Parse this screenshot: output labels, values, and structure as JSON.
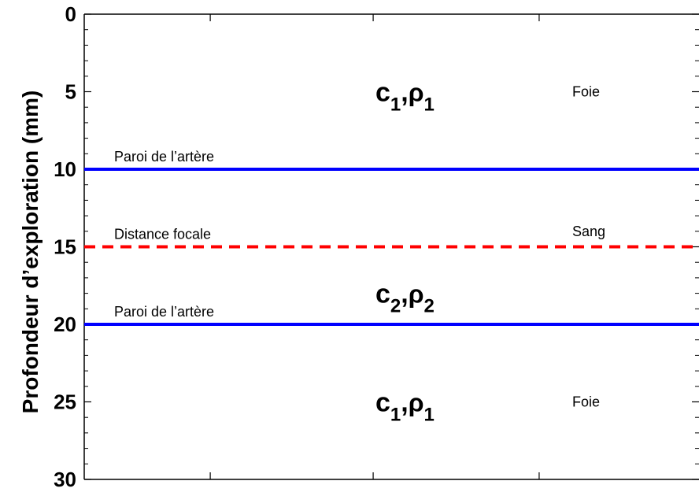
{
  "chart_data": {
    "type": "line",
    "ylabel": "Profondeur d’exploration (mm)",
    "ylim": [
      0,
      30
    ],
    "y_reversed": true,
    "yticks": [
      0,
      5,
      10,
      15,
      20,
      25,
      30
    ],
    "ytick_labels": [
      "0",
      "5",
      "10",
      "15",
      "20",
      "25",
      "30"
    ],
    "minor_ytick_step": 1,
    "xticks_count": 4,
    "grid": false,
    "lines": [
      {
        "name": "Paroi de l’artère",
        "depth": 10,
        "color": "#0000ff",
        "style": "solid"
      },
      {
        "name": "Distance focale",
        "depth": 15,
        "color": "#ff0000",
        "style": "dashed"
      },
      {
        "name": "Paroi de l’artère",
        "depth": 20,
        "color": "#0000ff",
        "style": "solid"
      }
    ],
    "layer_labels": [
      {
        "symbol": "c",
        "sub": "1",
        "greek": "ρ",
        "greek_sub": "1",
        "depth": 5
      },
      {
        "symbol": "c",
        "sub": "2",
        "greek": "ρ",
        "greek_sub": "2",
        "depth": 18
      },
      {
        "symbol": "c",
        "sub": "1",
        "greek": "ρ",
        "greek_sub": "1",
        "depth": 25
      }
    ],
    "tissue_labels": [
      {
        "text": "Foie",
        "depth": 5
      },
      {
        "text": "Sang",
        "depth": 14
      },
      {
        "text": "Foie",
        "depth": 25
      }
    ]
  }
}
